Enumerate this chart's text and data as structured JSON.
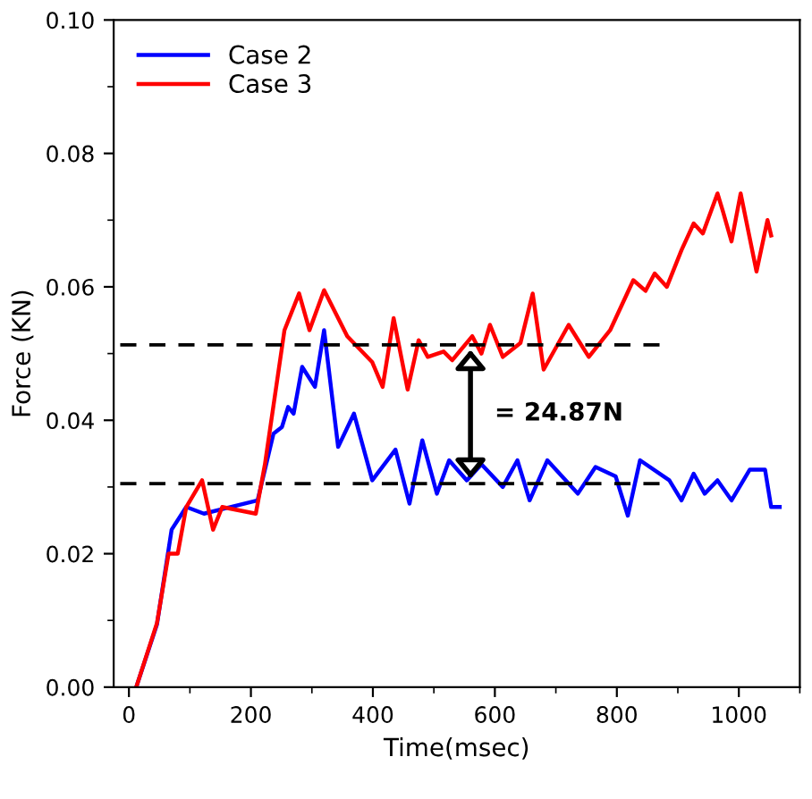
{
  "chart_data": {
    "type": "line",
    "xlabel": "Time(msec)",
    "ylabel": "Force (KN)",
    "xlim": [
      -25,
      1100
    ],
    "xticks": [
      0,
      200,
      400,
      600,
      800,
      1000
    ],
    "ylim": [
      0,
      0.1
    ],
    "yticks": [
      {
        "value": 0,
        "label": "0.00"
      },
      {
        "value": 0.02,
        "label": "0.02"
      },
      {
        "value": 0.04,
        "label": "0.04"
      },
      {
        "value": 0.06,
        "label": "0.06"
      },
      {
        "value": 0.08,
        "label": "0.08"
      },
      {
        "value": 0.1,
        "label": "0.10"
      }
    ],
    "grid": false,
    "legend": "top left",
    "line_style": "solid",
    "marker": "none",
    "series": [
      {
        "name": "Case 2",
        "color": "#0000ff",
        "x": [
          12,
          46,
          70,
          94,
          123,
          211,
          237,
          251,
          261,
          270,
          284,
          305,
          320,
          343,
          369,
          399,
          437,
          460,
          481,
          505,
          525,
          554,
          578,
          613,
          637,
          657,
          686,
          736,
          765,
          798,
          818,
          838,
          886,
          906,
          926,
          944,
          965,
          988,
          1018,
          1043,
          1053,
          1067
        ],
        "values": [
          0,
          0.0094,
          0.0236,
          0.027,
          0.026,
          0.028,
          0.038,
          0.039,
          0.042,
          0.041,
          0.048,
          0.045,
          0.0535,
          0.036,
          0.041,
          0.031,
          0.0356,
          0.0275,
          0.037,
          0.029,
          0.034,
          0.031,
          0.0334,
          0.03,
          0.034,
          0.028,
          0.034,
          0.029,
          0.033,
          0.0316,
          0.0257,
          0.034,
          0.031,
          0.028,
          0.032,
          0.029,
          0.031,
          0.028,
          0.0326,
          0.0326,
          0.027,
          0.027
        ]
      },
      {
        "name": "Case 3",
        "color": "#ff0000",
        "x": [
          12,
          46,
          65,
          80,
          94,
          120,
          138,
          153,
          208,
          223,
          255,
          279,
          296,
          320,
          358,
          399,
          416,
          434,
          457,
          475,
          490,
          516,
          530,
          563,
          578,
          592,
          613,
          642,
          662,
          680,
          721,
          754,
          789,
          827,
          847,
          862,
          882,
          906,
          926,
          941,
          965,
          974,
          988,
          1003,
          1029,
          1047,
          1053
        ],
        "values": [
          0,
          0.0096,
          0.02,
          0.02,
          0.027,
          0.031,
          0.0236,
          0.027,
          0.026,
          0.0334,
          0.0535,
          0.059,
          0.0535,
          0.0595,
          0.0526,
          0.0487,
          0.045,
          0.0553,
          0.0446,
          0.052,
          0.0495,
          0.0503,
          0.049,
          0.0526,
          0.05,
          0.0543,
          0.0495,
          0.0516,
          0.059,
          0.0476,
          0.0543,
          0.0495,
          0.0535,
          0.061,
          0.0594,
          0.062,
          0.06,
          0.0655,
          0.0695,
          0.068,
          0.074,
          0.0713,
          0.0668,
          0.074,
          0.0623,
          0.07,
          0.0677
        ]
      },
      {
        "color": "#000000",
        "line_style": "dashed",
        "x": [
          -25,
          870
        ],
        "values": [
          0.0513,
          0.0513
        ]
      },
      {
        "color": "#000000",
        "line_style": "dashed",
        "x": [
          -25,
          870
        ],
        "values": [
          0.0305,
          0.0305
        ]
      }
    ],
    "annotations": [
      "= 24.87N"
    ]
  }
}
